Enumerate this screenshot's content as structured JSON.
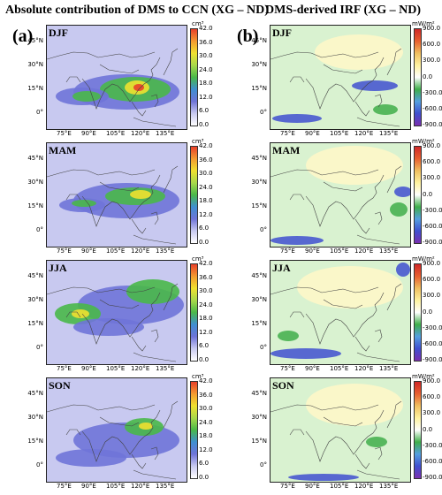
{
  "titles": {
    "left": "Absolute contribution of DMS to CCN (XG – ND)",
    "right": "DMS-derived IRF (XG – ND)",
    "left_letter": "(a)",
    "right_letter": "(b)"
  },
  "seasons": [
    "DJF",
    "MAM",
    "JJA",
    "SON"
  ],
  "lat_labels": [
    "45°N",
    "30°N",
    "15°N",
    "0°"
  ],
  "lon_labels": [
    "75°E",
    "90°E",
    "105°E",
    "120°E",
    "135°E"
  ],
  "left_colorbar": {
    "unit": "cm³",
    "ticks": [
      "42.0",
      "36.0",
      "30.0",
      "24.0",
      "18.0",
      "12.0",
      "6.0",
      "0.0"
    ]
  },
  "right_colorbar": {
    "unit": "mW/m²",
    "ticks": [
      "900.0",
      "600.0",
      "300.0",
      "0.0",
      "-300.0",
      "-600.0",
      "-900.0"
    ]
  },
  "colors": {
    "ccn_low": "#c8c9f0",
    "ccn_mid": "#6f74d8",
    "ccn_green": "#49b849",
    "ccn_yellow": "#f0e030",
    "ccn_red": "#e8402a",
    "irf_bg": "#d9f2d0",
    "irf_cream": "#fff8c8",
    "irf_blue": "#4050d0",
    "irf_green": "#3fae4a"
  }
}
